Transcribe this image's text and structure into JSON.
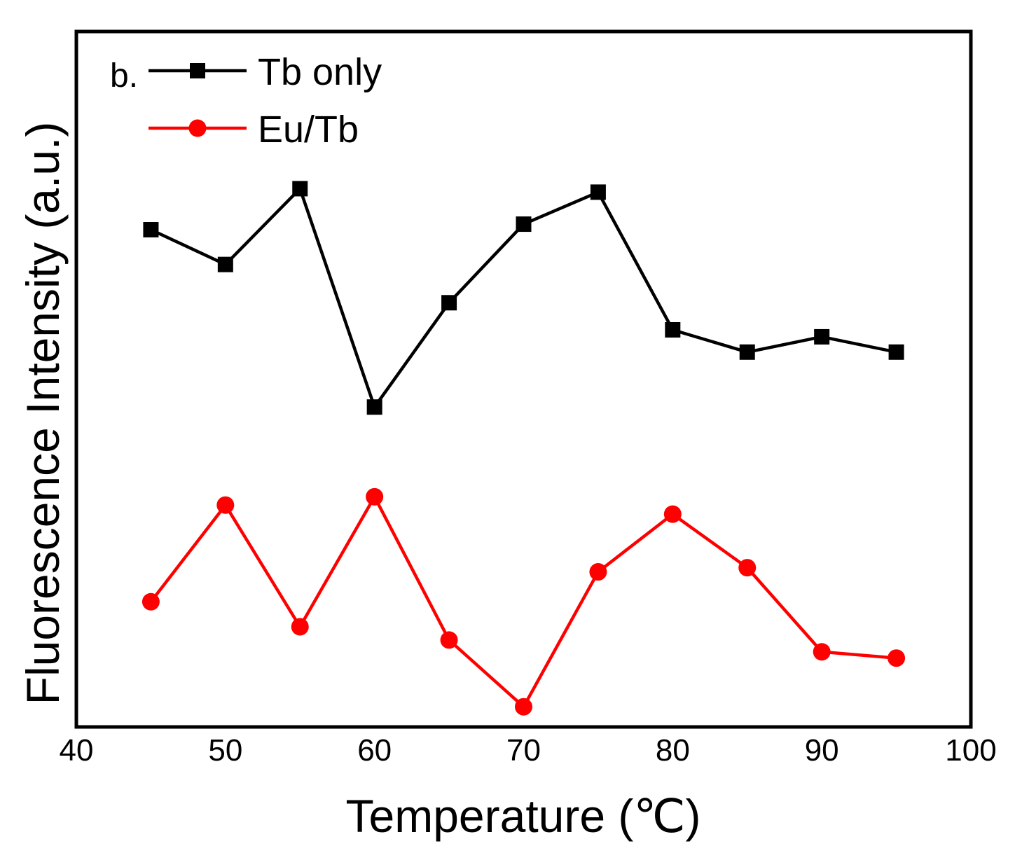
{
  "chart_data": {
    "type": "line",
    "panel_label": "b.",
    "xlabel": "Temperature (℃)",
    "ylabel": "Fluorescence Intensity (a.u.)",
    "xlim": [
      40,
      100
    ],
    "ylim": [
      0,
      1
    ],
    "x_ticks": [
      40,
      50,
      60,
      70,
      80,
      90,
      100
    ],
    "x_tick_labels": [
      "40",
      "50",
      "60",
      "70",
      "80",
      "90",
      "100"
    ],
    "y_ticks_shown": false,
    "legend_position": "top-left",
    "x": [
      45,
      50,
      55,
      60,
      65,
      70,
      75,
      80,
      85,
      90,
      95
    ],
    "series": [
      {
        "name": "Tb only",
        "color": "#000000",
        "marker": "square",
        "values": [
          0.715,
          0.665,
          0.774,
          0.46,
          0.61,
          0.723,
          0.769,
          0.571,
          0.539,
          0.561,
          0.539
        ]
      },
      {
        "name": "Eu/Tb",
        "color": "#ff0000",
        "marker": "circle",
        "values": [
          0.18,
          0.319,
          0.144,
          0.331,
          0.125,
          0.029,
          0.223,
          0.306,
          0.229,
          0.108,
          0.099
        ]
      }
    ]
  }
}
